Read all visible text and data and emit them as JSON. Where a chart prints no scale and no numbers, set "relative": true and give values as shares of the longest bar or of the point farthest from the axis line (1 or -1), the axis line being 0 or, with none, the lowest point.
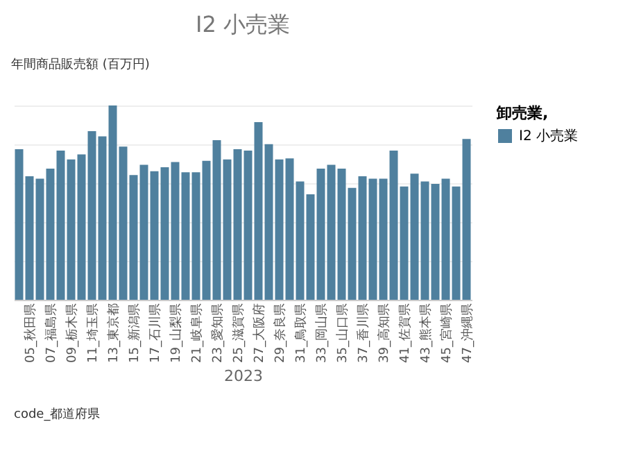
{
  "chart_data": {
    "type": "bar",
    "title": "I2 小売業",
    "xlabel": "2023",
    "legend_title": "卸売業,",
    "legend": "right",
    "relative": true,
    "grid": "y",
    "categories": [
      null,
      "05_秋田県",
      null,
      "07_福島県",
      null,
      "09_栃木県",
      null,
      "11_埼玉県",
      null,
      "13_東京都",
      null,
      "15_新潟県",
      null,
      "17_石川県",
      null,
      "19_山梨県",
      null,
      "21_岐阜県",
      null,
      "23_愛知県",
      null,
      "25_滋賀県",
      null,
      "27_大阪府",
      null,
      "29_奈良県",
      null,
      "31_鳥取県",
      null,
      "33_岡山県",
      null,
      "35_山口県",
      null,
      "37_香川県",
      null,
      "39_高知県",
      null,
      "41_佐賀県",
      null,
      "43_熊本県",
      null,
      "45_宮崎県",
      null,
      "47_沖縄県"
    ],
    "series": [
      {
        "name": "I2 小売業",
        "color": "#4f809e",
        "values": [
          0.775,
          0.636,
          0.623,
          0.675,
          0.768,
          0.722,
          0.748,
          0.868,
          0.841,
          1,
          0.788,
          0.642,
          0.695,
          0.662,
          0.682,
          0.709,
          0.656,
          0.656,
          0.715,
          0.821,
          0.722,
          0.775,
          0.768,
          0.914,
          0.801,
          0.722,
          0.728,
          0.609,
          0.543,
          0.675,
          0.695,
          0.675,
          0.576,
          0.636,
          0.623,
          0.623,
          0.768,
          0.583,
          0.649,
          0.609,
          0.596,
          0.623,
          0.583,
          0.828
        ]
      }
    ],
    "annotations": [
      "年間商品販売額 (百万円)",
      "code_都道府県"
    ]
  }
}
